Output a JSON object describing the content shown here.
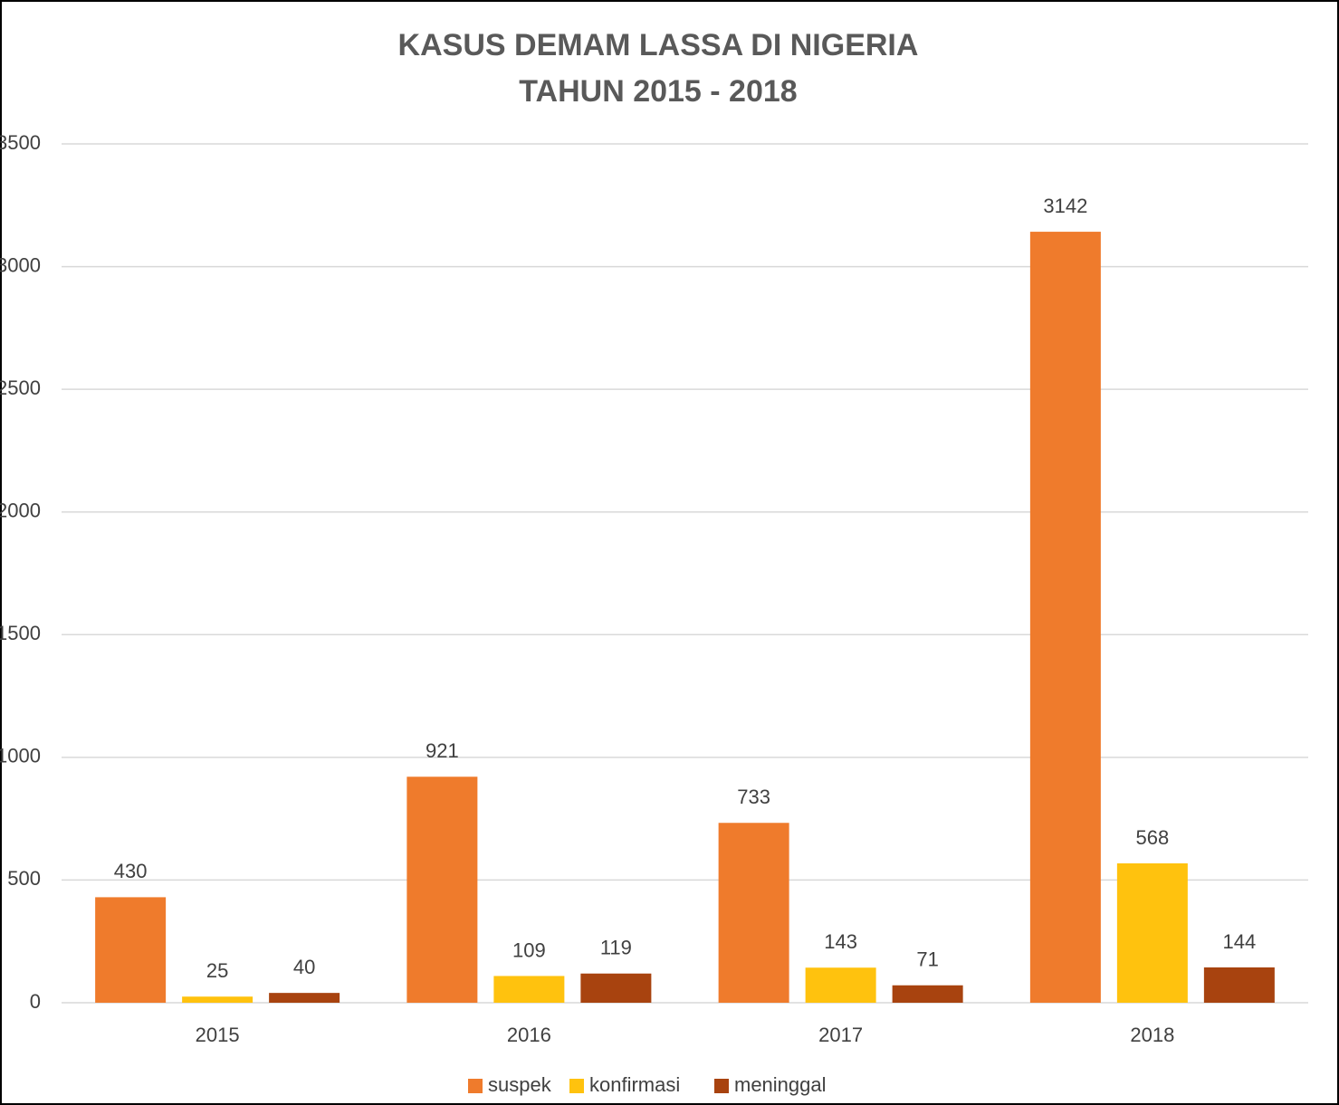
{
  "chart_data": {
    "type": "bar",
    "title": [
      "KASUS DEMAM LASSA DI NIGERIA",
      "TAHUN 2015 - 2018"
    ],
    "categories": [
      "2015",
      "2016",
      "2017",
      "2018"
    ],
    "series": [
      {
        "name": "suspek",
        "color": "#ef7b2c",
        "values": [
          430,
          921,
          733,
          3142
        ]
      },
      {
        "name": "konfirmasi",
        "color": "#ffc20e",
        "values": [
          25,
          109,
          143,
          568
        ]
      },
      {
        "name": "meninggal",
        "color": "#a8430f",
        "values": [
          40,
          119,
          71,
          144
        ]
      }
    ],
    "ylim": [
      0,
      3500
    ],
    "yticks": [
      0,
      500,
      1000,
      1500,
      2000,
      2500,
      3000,
      3500
    ],
    "grid": true,
    "legend": "bottom"
  }
}
